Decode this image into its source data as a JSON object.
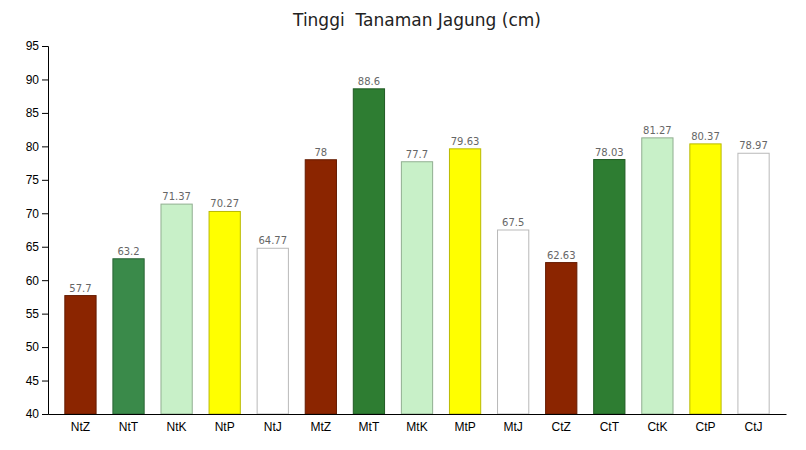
{
  "chart_data": {
    "type": "bar",
    "title": "Tinggi  Tanaman Jagung (cm)",
    "categories": [
      "NtZ",
      "NtT",
      "NtK",
      "NtP",
      "NtJ",
      "MtZ",
      "MtT",
      "MtK",
      "MtP",
      "MtJ",
      "CtZ",
      "CtT",
      "CtK",
      "CtP",
      "CtJ"
    ],
    "values": [
      57.7,
      63.2,
      71.37,
      70.27,
      64.77,
      78,
      88.6,
      77.7,
      79.63,
      67.5,
      62.63,
      78.03,
      81.27,
      80.37,
      78.97
    ],
    "colors": [
      "#8B2500",
      "#3A8A4A",
      "#C8F0C8",
      "#FFFF00",
      "#FFFFFF",
      "#8B2500",
      "#2E7D32",
      "#C8F0C8",
      "#FFFF00",
      "#FFFFFF",
      "#8B2500",
      "#2E7D32",
      "#C8F0C8",
      "#FFFF00",
      "#FFFFFF"
    ],
    "ylim": [
      40,
      95
    ],
    "yticks": [
      40,
      45,
      50,
      55,
      60,
      65,
      70,
      75,
      80,
      85,
      90,
      95
    ],
    "grid": false,
    "data_labels": true
  }
}
